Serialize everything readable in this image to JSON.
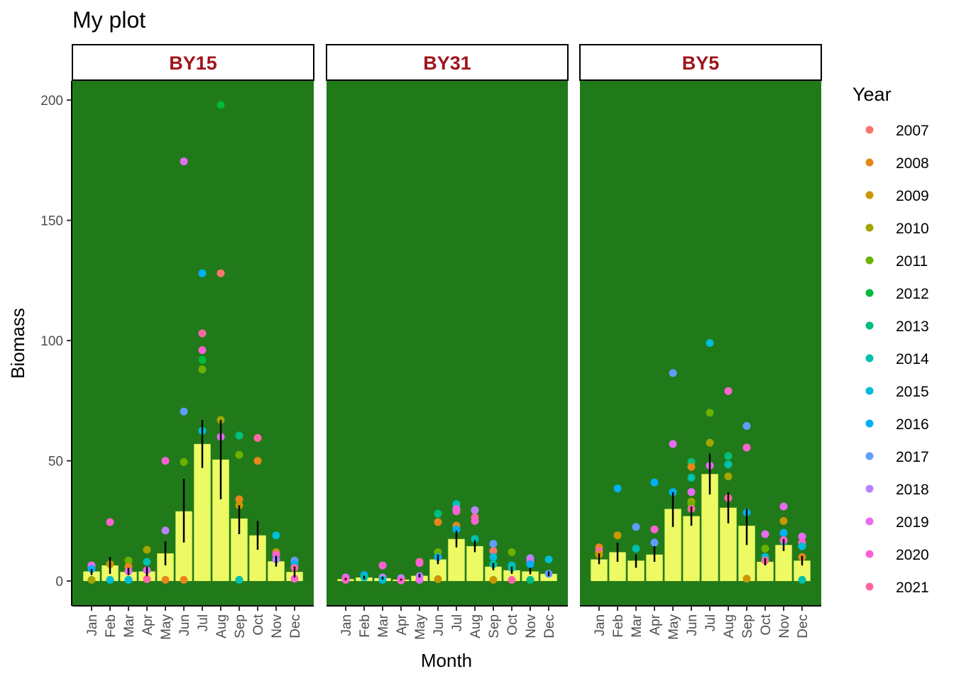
{
  "chart_data": {
    "type": "bar",
    "title": "My plot",
    "xlabel": "Month",
    "ylabel": "Biomass",
    "ylim": [
      -10,
      208
    ],
    "yticks": [
      0,
      50,
      100,
      150,
      200
    ],
    "months": [
      "Jan",
      "Feb",
      "Mar",
      "Apr",
      "May",
      "Jun",
      "Jul",
      "Aug",
      "Sep",
      "Oct",
      "Nov",
      "Dec"
    ],
    "panel_background": "#217a1a",
    "bar_color": "#eefa64",
    "strip_text_color": "#a0151c",
    "legend": {
      "title": "Year",
      "placement": "right",
      "years": [
        "2007",
        "2008",
        "2009",
        "2010",
        "2011",
        "2012",
        "2013",
        "2014",
        "2015",
        "2016",
        "2017",
        "2018",
        "2019",
        "2020",
        "2021"
      ],
      "colors": [
        "#f8766d",
        "#e7861a",
        "#c99800",
        "#a3a500",
        "#6bb100",
        "#00ba38",
        "#00bf7d",
        "#00c0af",
        "#00bcd8",
        "#00b0f6",
        "#619cff",
        "#b983ff",
        "#e76bf3",
        "#fd61d1",
        "#ff67a4"
      ]
    },
    "panels": [
      {
        "name": "BY15",
        "means": [
          4,
          6.5,
          3.8,
          4,
          11.5,
          29,
          57,
          50.5,
          26,
          19,
          8.2,
          3.8
        ],
        "error_low": [
          2.5,
          3,
          2.5,
          2,
          6.5,
          16,
          47,
          34,
          19.5,
          13,
          6,
          1.5
        ],
        "error_high": [
          5,
          10,
          5.5,
          6,
          16.5,
          42.5,
          67,
          67,
          31.5,
          25,
          10.5,
          6
        ],
        "points": [
          [
            0,
            "2008",
            6
          ],
          [
            0,
            "2010",
            0.5
          ],
          [
            0,
            "2019",
            6.5
          ],
          [
            0,
            "2016",
            5
          ],
          [
            1,
            "2009",
            7
          ],
          [
            1,
            "2020",
            24.5
          ],
          [
            1,
            "2015",
            0.5
          ],
          [
            2,
            "2011",
            8.5
          ],
          [
            2,
            "2015",
            0.5
          ],
          [
            2,
            "2008",
            6
          ],
          [
            2,
            "2019",
            4
          ],
          [
            3,
            "2010",
            13
          ],
          [
            3,
            "2014",
            8
          ],
          [
            3,
            "2019",
            4.5
          ],
          [
            3,
            "2021",
            0.8
          ],
          [
            4,
            "2020",
            50
          ],
          [
            4,
            "2018",
            21
          ],
          [
            4,
            "2008",
            0.5
          ],
          [
            5,
            "2019",
            174.5
          ],
          [
            5,
            "2017",
            70.5
          ],
          [
            5,
            "2011",
            49.5
          ],
          [
            5,
            "2008",
            0.5
          ],
          [
            6,
            "2016",
            128
          ],
          [
            6,
            "2021",
            103
          ],
          [
            6,
            "2020",
            96
          ],
          [
            6,
            "2012",
            92
          ],
          [
            6,
            "2011",
            88
          ],
          [
            6,
            "2015",
            62.5
          ],
          [
            7,
            "2012",
            198
          ],
          [
            7,
            "2007",
            128
          ],
          [
            7,
            "2010",
            67
          ],
          [
            7,
            "2019",
            60
          ],
          [
            8,
            "2013",
            60.5
          ],
          [
            8,
            "2011",
            52.5
          ],
          [
            8,
            "2008",
            34
          ],
          [
            8,
            "2009",
            31.5
          ],
          [
            8,
            "2014",
            0.5
          ],
          [
            9,
            "2021",
            59.5
          ],
          [
            9,
            "2008",
            50
          ],
          [
            10,
            "2015",
            19
          ],
          [
            10,
            "2009",
            12
          ],
          [
            10,
            "2020",
            11
          ],
          [
            10,
            "2018",
            9
          ],
          [
            11,
            "2017",
            8.5
          ],
          [
            11,
            "2016",
            7
          ],
          [
            11,
            "2021",
            5.5
          ],
          [
            11,
            "2020",
            1
          ]
        ]
      },
      {
        "name": "BY31",
        "means": [
          0.8,
          1.5,
          1.2,
          0.6,
          2.2,
          9,
          17.5,
          14.5,
          6,
          4.5,
          4,
          3
        ],
        "error_low": [
          0.3,
          0.8,
          0.6,
          0.2,
          1.5,
          7,
          14,
          12,
          4.5,
          3,
          2.8,
          2
        ],
        "error_high": [
          1.3,
          2.2,
          1.8,
          1,
          3,
          11,
          21,
          17,
          7.5,
          6,
          5.5,
          4
        ],
        "points": [
          [
            0,
            "2019",
            1.5
          ],
          [
            0,
            "2020",
            0.5
          ],
          [
            1,
            "2016",
            2.5
          ],
          [
            1,
            "2014",
            1.5
          ],
          [
            2,
            "2020",
            6.5
          ],
          [
            2,
            "2018",
            1.5
          ],
          [
            2,
            "2015",
            0.5
          ],
          [
            3,
            "2018",
            1.2
          ],
          [
            3,
            "2020",
            0.3
          ],
          [
            4,
            "2021",
            8
          ],
          [
            4,
            "2020",
            7.5
          ],
          [
            4,
            "2018",
            2
          ],
          [
            4,
            "2019",
            0.5
          ],
          [
            5,
            "2013",
            28
          ],
          [
            5,
            "2008",
            24.5
          ],
          [
            5,
            "2011",
            12
          ],
          [
            5,
            "2016",
            10
          ],
          [
            5,
            "2009",
            0.8
          ],
          [
            6,
            "2014",
            32
          ],
          [
            6,
            "2019",
            30
          ],
          [
            6,
            "2020",
            29
          ],
          [
            6,
            "2008",
            23
          ],
          [
            6,
            "2016",
            21.5
          ],
          [
            7,
            "2018",
            29.5
          ],
          [
            7,
            "2021",
            26.5
          ],
          [
            7,
            "2020",
            25
          ],
          [
            7,
            "2014",
            17.5
          ],
          [
            8,
            "2017",
            15.5
          ],
          [
            8,
            "2007",
            12.5
          ],
          [
            8,
            "2015",
            10
          ],
          [
            8,
            "2014",
            7
          ],
          [
            8,
            "2009",
            0.5
          ],
          [
            9,
            "2011",
            12
          ],
          [
            9,
            "2015",
            6.5
          ],
          [
            9,
            "2014",
            5.5
          ],
          [
            9,
            "2021",
            0.5
          ],
          [
            10,
            "2018",
            9.5
          ],
          [
            10,
            "2019",
            8
          ],
          [
            10,
            "2016",
            7
          ],
          [
            10,
            "2013",
            0.5
          ],
          [
            11,
            "2015",
            9
          ],
          [
            11,
            "2017",
            3
          ]
        ]
      },
      {
        "name": "BY5",
        "means": [
          9,
          12,
          8.5,
          11,
          30,
          27,
          44.5,
          30.5,
          23,
          8,
          15,
          8.5
        ],
        "error_low": [
          7,
          8,
          5.5,
          8,
          22.5,
          23,
          36,
          24,
          15,
          6.5,
          12.5,
          6.5
        ],
        "error_high": [
          11.5,
          16,
          11,
          14.5,
          37,
          31,
          53,
          37,
          30,
          9.5,
          17.5,
          10.5
        ],
        "points": [
          [
            0,
            "2008",
            14
          ],
          [
            0,
            "2021",
            12.5
          ],
          [
            0,
            "2009",
            11
          ],
          [
            1,
            "2016",
            38.5
          ],
          [
            1,
            "2009",
            19
          ],
          [
            2,
            "2017",
            22.5
          ],
          [
            2,
            "2014",
            13.5
          ],
          [
            3,
            "2016",
            41
          ],
          [
            3,
            "2020",
            21.5
          ],
          [
            3,
            "2017",
            16
          ],
          [
            4,
            "2017",
            86.5
          ],
          [
            4,
            "2019",
            57
          ],
          [
            4,
            "2016",
            37
          ],
          [
            5,
            "2013",
            49.5
          ],
          [
            5,
            "2008",
            47.5
          ],
          [
            5,
            "2014",
            43
          ],
          [
            5,
            "2019",
            37
          ],
          [
            5,
            "2010",
            33
          ],
          [
            5,
            "2011",
            32
          ],
          [
            5,
            "2021",
            30
          ],
          [
            6,
            "2015",
            99
          ],
          [
            6,
            "2011",
            70
          ],
          [
            6,
            "2010",
            57.5
          ],
          [
            6,
            "2019",
            48
          ],
          [
            7,
            "2020",
            79
          ],
          [
            7,
            "2013",
            52
          ],
          [
            7,
            "2014",
            48.5
          ],
          [
            7,
            "2010",
            43.5
          ],
          [
            7,
            "2021",
            34.5
          ],
          [
            8,
            "2017",
            64.5
          ],
          [
            8,
            "2020",
            55.5
          ],
          [
            8,
            "2016",
            28.5
          ],
          [
            8,
            "2009",
            1
          ],
          [
            9,
            "2019",
            19.5
          ],
          [
            9,
            "2011",
            13.5
          ],
          [
            9,
            "2015",
            10
          ],
          [
            9,
            "2021",
            8.5
          ],
          [
            10,
            "2019",
            31
          ],
          [
            10,
            "2009",
            25
          ],
          [
            10,
            "2016",
            20
          ],
          [
            10,
            "2014",
            16.5
          ],
          [
            10,
            "2020",
            17
          ],
          [
            11,
            "2019",
            18.5
          ],
          [
            11,
            "2020",
            16
          ],
          [
            11,
            "2015",
            14.5
          ],
          [
            11,
            "2008",
            10
          ],
          [
            11,
            "2014",
            0.5
          ]
        ]
      }
    ]
  }
}
